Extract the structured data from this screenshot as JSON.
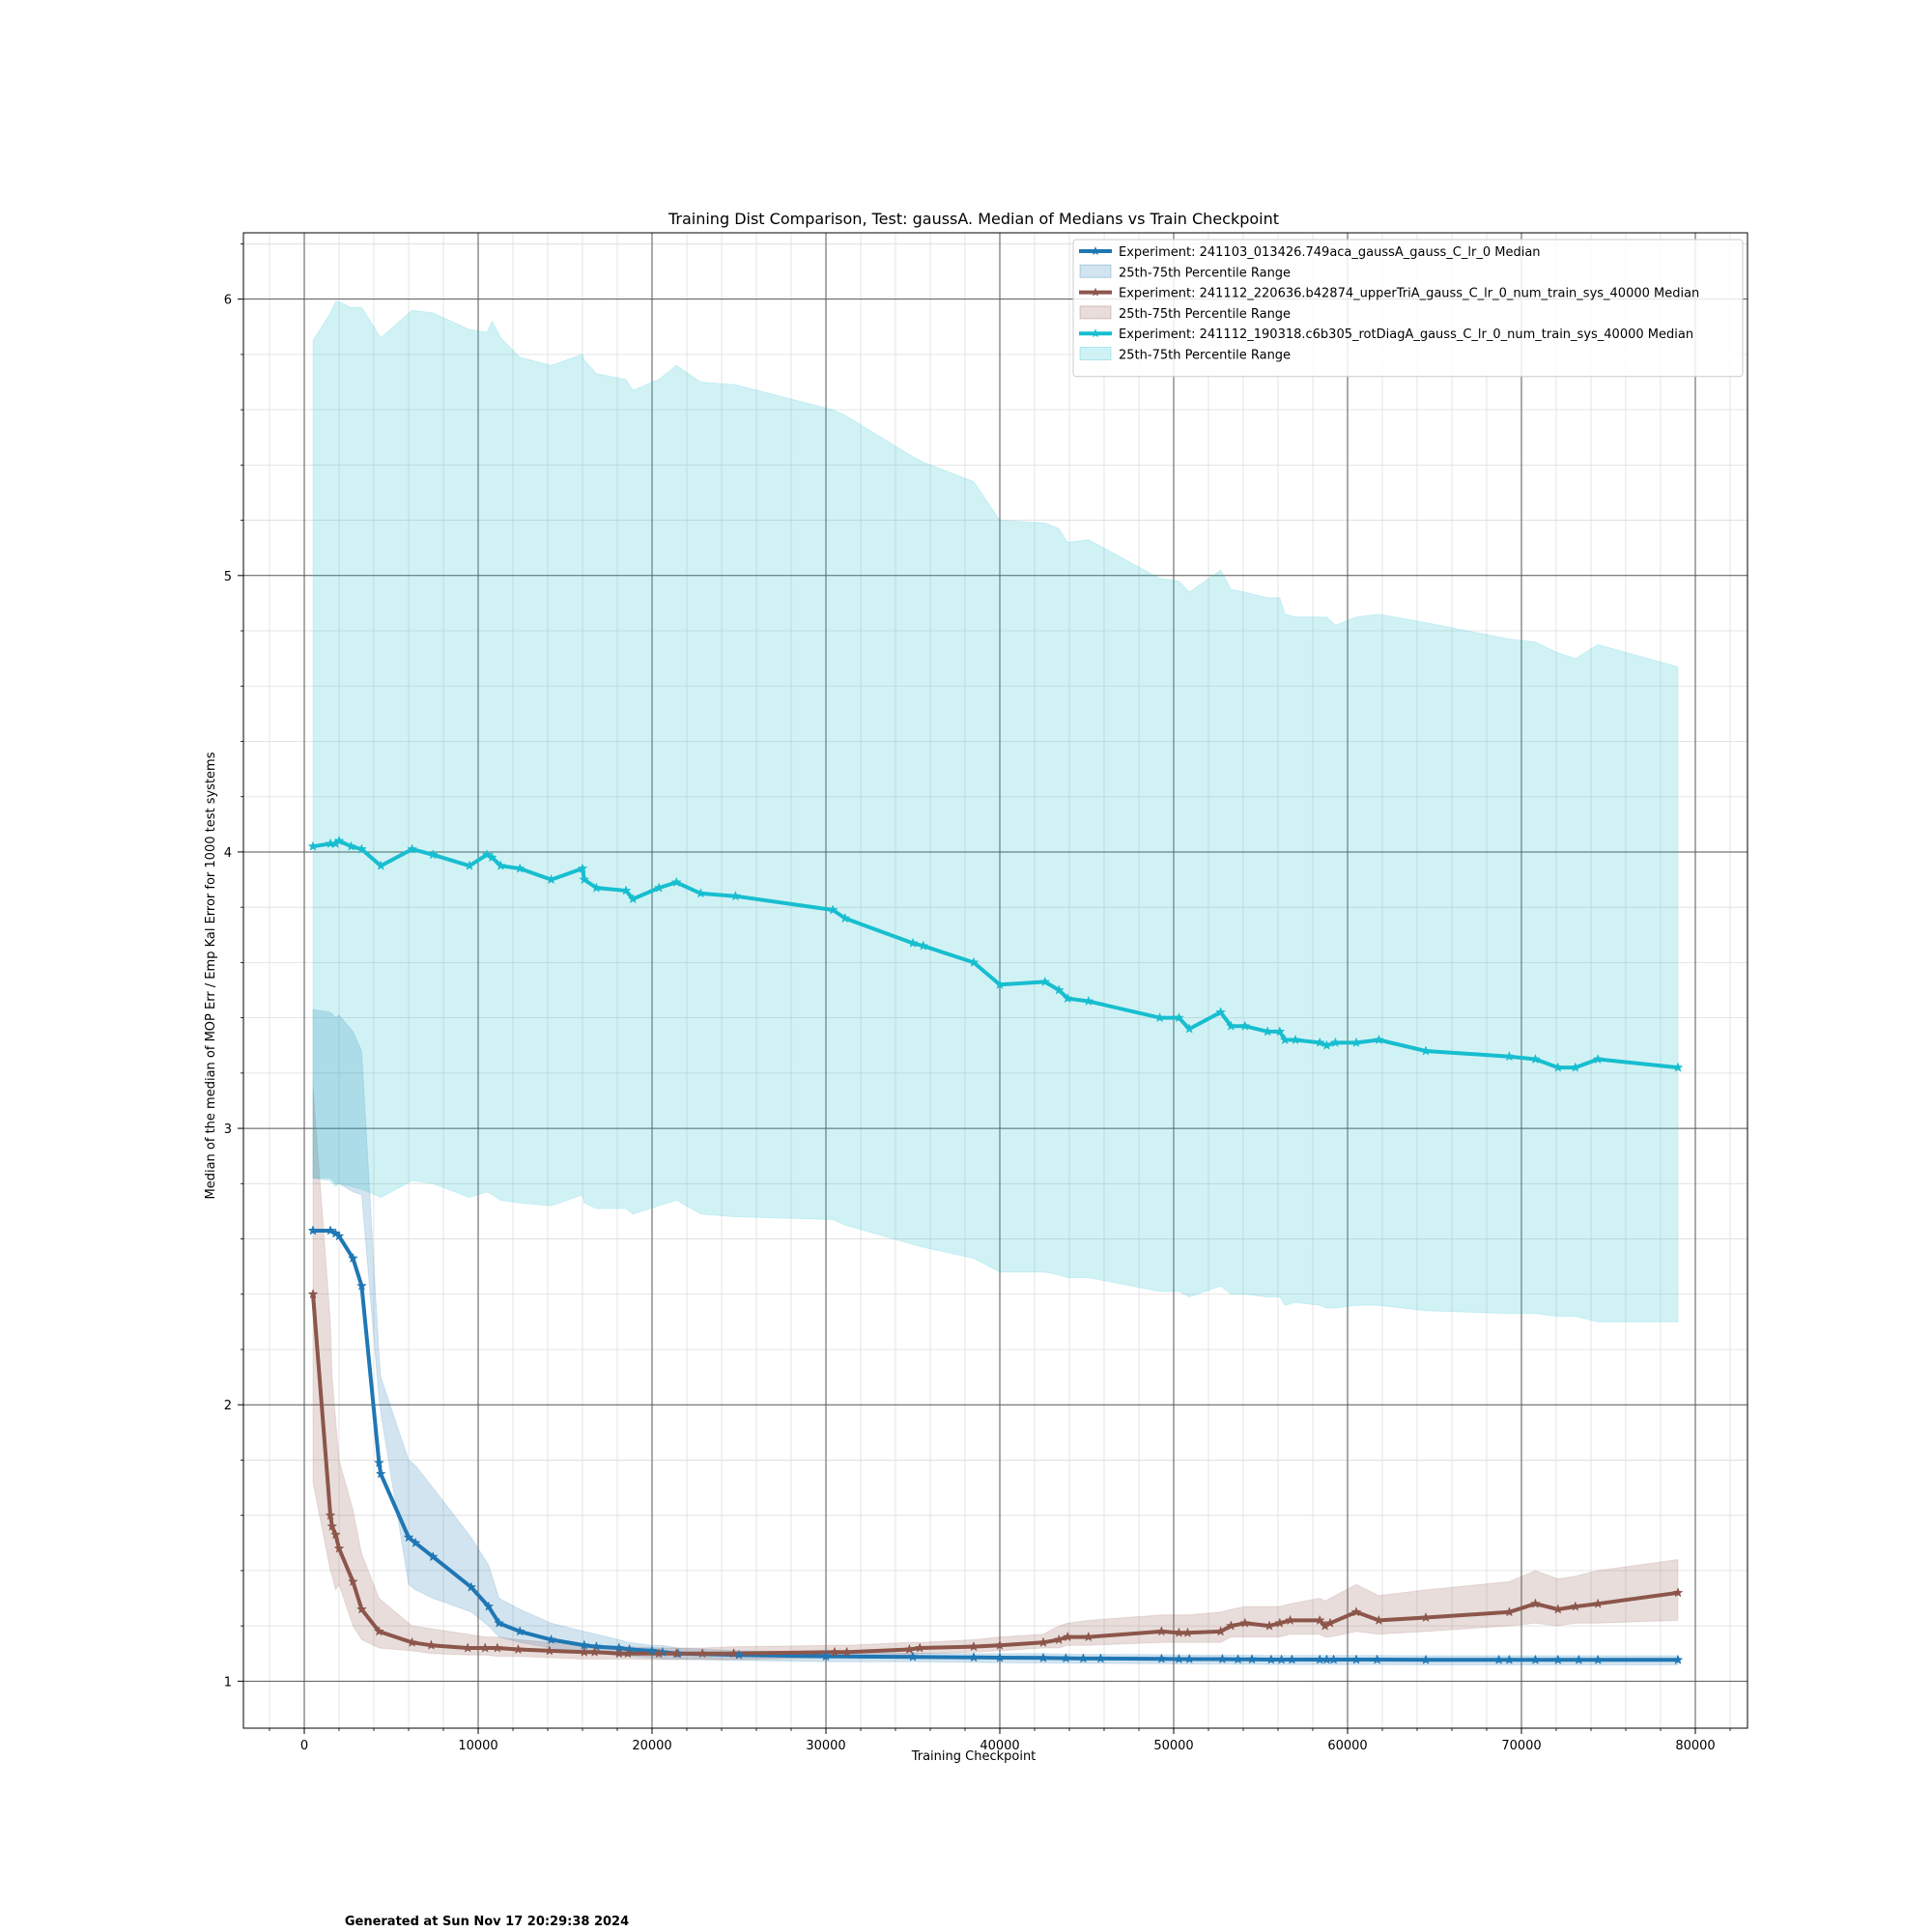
{
  "chart_data": {
    "type": "line",
    "title": "Training Dist Comparison, Test: gaussA. Median of Medians vs Train Checkpoint",
    "xlabel": "Training Checkpoint",
    "ylabel": "Median of the median of MOP Err / Emp Kal Error for 1000 test systems",
    "xlim": [
      -3500,
      83000
    ],
    "ylim": [
      0.83,
      6.24
    ],
    "x_ticks": [
      0,
      10000,
      20000,
      30000,
      40000,
      50000,
      60000,
      70000,
      80000
    ],
    "y_ticks": [
      1,
      2,
      3,
      4,
      5,
      6
    ],
    "grid": "major and minor",
    "legend_position": "top-right",
    "marker": "star",
    "series": [
      {
        "name": "Experiment: 241103_013426.749aca_gaussA_gauss_C_lr_0 Median",
        "color": "#1f77b4",
        "x": [
          500,
          1500,
          1800,
          2000,
          2800,
          3300,
          4300,
          4400,
          6000,
          6400,
          7400,
          9600,
          10600,
          11200,
          12400,
          14200,
          16100,
          16800,
          18100,
          18700,
          20000,
          20600,
          21500,
          25000,
          30000,
          35000,
          38500,
          40000,
          42500,
          43800,
          44800,
          45800,
          49300,
          50300,
          50900,
          52800,
          53700,
          54500,
          55600,
          56200,
          56800,
          58400,
          58800,
          59200,
          60500,
          61700,
          64500,
          68700,
          69300,
          70800,
          72100,
          73300,
          74400,
          79000
        ],
        "values": [
          2.63,
          2.63,
          2.62,
          2.61,
          2.53,
          2.43,
          1.79,
          1.75,
          1.52,
          1.5,
          1.45,
          1.34,
          1.27,
          1.21,
          1.18,
          1.15,
          1.13,
          1.125,
          1.12,
          1.115,
          1.11,
          1.105,
          1.1,
          1.095,
          1.09,
          1.088,
          1.086,
          1.085,
          1.084,
          1.083,
          1.082,
          1.082,
          1.081,
          1.08,
          1.08,
          1.08,
          1.079,
          1.079,
          1.078,
          1.078,
          1.078,
          1.078,
          1.078,
          1.078,
          1.078,
          1.078,
          1.077,
          1.077,
          1.077,
          1.077,
          1.077,
          1.077,
          1.077,
          1.077
        ],
        "q25": [
          2.82,
          2.82,
          2.8,
          2.8,
          2.77,
          2.76,
          2.02,
          1.97,
          1.35,
          1.33,
          1.3,
          1.25,
          1.2,
          1.16,
          1.14,
          1.12,
          1.1,
          1.1,
          1.095,
          1.09,
          1.085,
          1.08,
          1.08,
          1.075,
          1.07,
          1.07,
          1.068,
          1.067,
          1.066,
          1.065,
          1.064,
          1.064,
          1.063,
          1.062,
          1.062,
          1.062,
          1.061,
          1.061,
          1.06,
          1.06,
          1.06,
          1.06,
          1.06,
          1.06,
          1.06,
          1.06,
          1.059,
          1.059,
          1.059,
          1.059,
          1.059,
          1.059,
          1.059,
          1.059
        ],
        "q75": [
          3.43,
          3.42,
          3.4,
          3.41,
          3.35,
          3.28,
          2.18,
          2.1,
          1.8,
          1.78,
          1.7,
          1.52,
          1.42,
          1.3,
          1.26,
          1.21,
          1.18,
          1.17,
          1.15,
          1.14,
          1.13,
          1.13,
          1.12,
          1.11,
          1.105,
          1.102,
          1.1,
          1.1,
          1.1,
          1.098,
          1.097,
          1.097,
          1.096,
          1.095,
          1.095,
          1.095,
          1.094,
          1.094,
          1.093,
          1.093,
          1.093,
          1.093,
          1.093,
          1.093,
          1.093,
          1.093,
          1.092,
          1.092,
          1.092,
          1.092,
          1.092,
          1.092,
          1.092,
          1.092
        ]
      },
      {
        "name": "Experiment: 241112_220636.b42874_upperTriA_gauss_C_lr_0_num_train_sys_40000 Median",
        "color": "#8c564b",
        "x": [
          500,
          1500,
          1600,
          1800,
          2000,
          2800,
          3300,
          4300,
          6200,
          7300,
          9400,
          10400,
          11100,
          12300,
          14100,
          16100,
          16700,
          18100,
          18600,
          20400,
          21400,
          22900,
          24700,
          30500,
          31200,
          34800,
          35400,
          38500,
          40000,
          42500,
          43400,
          43900,
          45100,
          49300,
          50300,
          50800,
          52700,
          53300,
          54100,
          55500,
          56100,
          56700,
          58400,
          58700,
          59000,
          60500,
          61800,
          64500,
          69300,
          70800,
          72100,
          73100,
          74400,
          79000
        ],
        "values": [
          2.4,
          1.6,
          1.56,
          1.53,
          1.48,
          1.36,
          1.26,
          1.18,
          1.14,
          1.13,
          1.12,
          1.12,
          1.12,
          1.115,
          1.11,
          1.105,
          1.105,
          1.1,
          1.1,
          1.1,
          1.1,
          1.1,
          1.1,
          1.105,
          1.105,
          1.115,
          1.12,
          1.125,
          1.13,
          1.14,
          1.15,
          1.16,
          1.16,
          1.18,
          1.175,
          1.175,
          1.18,
          1.2,
          1.21,
          1.2,
          1.21,
          1.22,
          1.22,
          1.2,
          1.21,
          1.25,
          1.22,
          1.23,
          1.25,
          1.28,
          1.26,
          1.27,
          1.28,
          1.32
        ],
        "q25": [
          1.72,
          1.4,
          1.38,
          1.33,
          1.35,
          1.2,
          1.15,
          1.12,
          1.11,
          1.1,
          1.095,
          1.095,
          1.09,
          1.09,
          1.085,
          1.08,
          1.08,
          1.08,
          1.08,
          1.078,
          1.078,
          1.078,
          1.078,
          1.085,
          1.085,
          1.095,
          1.1,
          1.105,
          1.11,
          1.12,
          1.12,
          1.13,
          1.13,
          1.14,
          1.14,
          1.14,
          1.14,
          1.16,
          1.16,
          1.16,
          1.16,
          1.17,
          1.17,
          1.16,
          1.16,
          1.18,
          1.17,
          1.18,
          1.2,
          1.21,
          1.2,
          1.21,
          1.21,
          1.22
        ],
        "q75": [
          3.15,
          2.3,
          2.1,
          1.95,
          1.8,
          1.62,
          1.46,
          1.3,
          1.2,
          1.19,
          1.17,
          1.16,
          1.16,
          1.15,
          1.14,
          1.13,
          1.13,
          1.125,
          1.125,
          1.12,
          1.12,
          1.12,
          1.125,
          1.13,
          1.13,
          1.14,
          1.14,
          1.15,
          1.16,
          1.17,
          1.2,
          1.21,
          1.22,
          1.24,
          1.24,
          1.24,
          1.25,
          1.26,
          1.27,
          1.27,
          1.27,
          1.28,
          1.3,
          1.29,
          1.3,
          1.35,
          1.31,
          1.33,
          1.36,
          1.4,
          1.37,
          1.38,
          1.4,
          1.44
        ]
      },
      {
        "name": "Experiment: 241112_190318.c6b305_rotDiagA_gauss_C_lr_0_num_train_sys_40000 Median",
        "color": "#17becf",
        "x": [
          500,
          1500,
          1800,
          2000,
          2700,
          3300,
          4400,
          6200,
          7400,
          9500,
          10500,
          10800,
          11300,
          12400,
          14200,
          16000,
          16100,
          16800,
          18500,
          18900,
          20400,
          21400,
          22800,
          24800,
          30400,
          31100,
          35000,
          35600,
          38500,
          40000,
          42600,
          43400,
          43900,
          45100,
          49200,
          50300,
          50900,
          52700,
          53300,
          54100,
          55400,
          56100,
          56400,
          57000,
          58400,
          58800,
          59300,
          60500,
          61800,
          64500,
          69300,
          70800,
          72100,
          73100,
          74400,
          79000
        ],
        "values": [
          4.02,
          4.03,
          4.03,
          4.04,
          4.02,
          4.01,
          3.95,
          4.01,
          3.99,
          3.95,
          3.99,
          3.98,
          3.95,
          3.94,
          3.9,
          3.94,
          3.9,
          3.87,
          3.86,
          3.83,
          3.87,
          3.89,
          3.85,
          3.84,
          3.79,
          3.76,
          3.67,
          3.66,
          3.6,
          3.52,
          3.53,
          3.5,
          3.47,
          3.46,
          3.4,
          3.4,
          3.36,
          3.42,
          3.37,
          3.37,
          3.35,
          3.35,
          3.32,
          3.32,
          3.31,
          3.3,
          3.31,
          3.31,
          3.32,
          3.28,
          3.26,
          3.25,
          3.22,
          3.22,
          3.25,
          3.22
        ],
        "q25": [
          2.82,
          2.81,
          2.79,
          2.8,
          2.79,
          2.78,
          2.75,
          2.81,
          2.8,
          2.75,
          2.77,
          2.76,
          2.74,
          2.73,
          2.72,
          2.76,
          2.73,
          2.71,
          2.71,
          2.69,
          2.72,
          2.74,
          2.69,
          2.68,
          2.67,
          2.65,
          2.58,
          2.57,
          2.53,
          2.48,
          2.48,
          2.47,
          2.46,
          2.46,
          2.41,
          2.41,
          2.39,
          2.43,
          2.4,
          2.4,
          2.39,
          2.39,
          2.36,
          2.37,
          2.36,
          2.35,
          2.35,
          2.36,
          2.36,
          2.34,
          2.33,
          2.33,
          2.32,
          2.32,
          2.3,
          2.3
        ],
        "q75": [
          5.85,
          5.95,
          5.99,
          5.99,
          5.97,
          5.97,
          5.86,
          5.96,
          5.95,
          5.89,
          5.88,
          5.92,
          5.86,
          5.79,
          5.76,
          5.8,
          5.78,
          5.73,
          5.71,
          5.67,
          5.71,
          5.76,
          5.7,
          5.69,
          5.6,
          5.58,
          5.43,
          5.41,
          5.34,
          5.2,
          5.19,
          5.17,
          5.12,
          5.13,
          4.99,
          4.98,
          4.94,
          5.02,
          4.95,
          4.94,
          4.92,
          4.92,
          4.86,
          4.85,
          4.85,
          4.85,
          4.82,
          4.85,
          4.86,
          4.83,
          4.77,
          4.76,
          4.72,
          4.7,
          4.75,
          4.67
        ]
      }
    ],
    "legend": [
      {
        "label": "Experiment: 241103_013426.749aca_gaussA_gauss_C_lr_0 Median",
        "kind": "line",
        "color": "#1f77b4"
      },
      {
        "label": "25th-75th Percentile Range",
        "kind": "band",
        "color": "#1f77b4"
      },
      {
        "label": "Experiment: 241112_220636.b42874_upperTriA_gauss_C_lr_0_num_train_sys_40000 Median",
        "kind": "line",
        "color": "#8c564b"
      },
      {
        "label": "25th-75th Percentile Range",
        "kind": "band",
        "color": "#8c564b"
      },
      {
        "label": "Experiment: 241112_190318.c6b305_rotDiagA_gauss_C_lr_0_num_train_sys_40000 Median",
        "kind": "line",
        "color": "#17becf"
      },
      {
        "label": "25th-75th Percentile Range",
        "kind": "band",
        "color": "#17becf"
      }
    ]
  },
  "footer": {
    "text": "Generated at Sun Nov 17 20:29:38 2024"
  }
}
